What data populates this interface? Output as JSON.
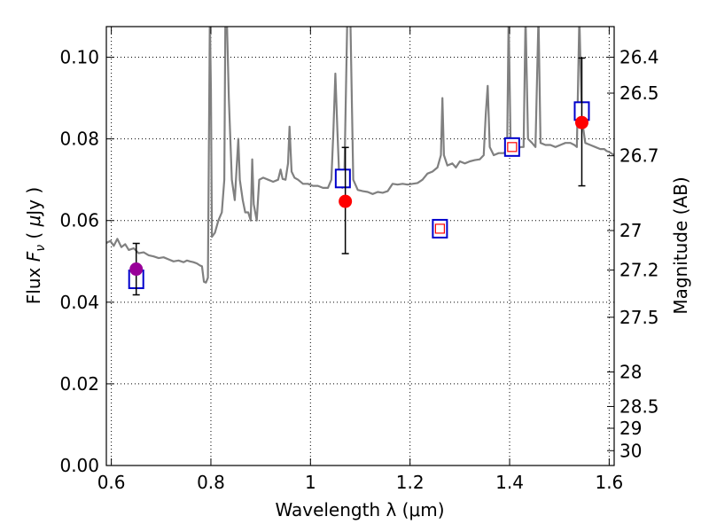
{
  "chart_data": {
    "type": "scatter",
    "xlabel": "Wavelength  λ (μm)",
    "ylabel_parts": [
      "Flux  ",
      "F",
      "ν",
      "  ( ",
      "μ",
      "Jy )"
    ],
    "y2label": "Magnitude (AB)",
    "xlim": [
      0.59,
      1.61
    ],
    "ylim": [
      0.0,
      0.1075
    ],
    "grid": true,
    "x_ticks": [
      0.6,
      0.8,
      1.0,
      1.2,
      1.4,
      1.6
    ],
    "x_tick_labels": [
      "0.6",
      "0.8",
      "1",
      "1.2",
      "1.4",
      "1.6"
    ],
    "y_ticks": [
      0.0,
      0.02,
      0.04,
      0.06,
      0.08,
      0.1
    ],
    "y_tick_labels": [
      "0.00",
      "0.02",
      "0.04",
      "0.06",
      "0.08",
      "0.10"
    ],
    "mag_ticks": [
      26.4,
      26.5,
      26.7,
      27,
      27.2,
      27.5,
      28,
      28.5,
      29,
      30
    ],
    "mag_tick_labels": [
      "26.4",
      "26.5",
      "26.7",
      "27",
      "27.2",
      "27.5",
      "28",
      "28.5",
      "29",
      "30"
    ],
    "colors": {
      "model": "#808080",
      "observed": "#ff0000",
      "observed_purple": "#990099",
      "synthetic_blue": "#0000cc",
      "synthetic_inner_red": "#ff0000",
      "errorbar": "#000000"
    },
    "series": [
      {
        "kind": "line",
        "points": [
          [
            0.59,
            0.0545
          ],
          [
            0.598,
            0.055
          ],
          [
            0.605,
            0.0538
          ],
          [
            0.612,
            0.0555
          ],
          [
            0.62,
            0.0535
          ],
          [
            0.628,
            0.0542
          ],
          [
            0.635,
            0.0528
          ],
          [
            0.645,
            0.0532
          ],
          [
            0.655,
            0.052
          ],
          [
            0.665,
            0.0522
          ],
          [
            0.675,
            0.0515
          ],
          [
            0.685,
            0.0512
          ],
          [
            0.695,
            0.0508
          ],
          [
            0.705,
            0.051
          ],
          [
            0.715,
            0.0505
          ],
          [
            0.725,
            0.05
          ],
          [
            0.735,
            0.0502
          ],
          [
            0.745,
            0.0498
          ],
          [
            0.752,
            0.0502
          ],
          [
            0.758,
            0.05
          ],
          [
            0.765,
            0.0498
          ],
          [
            0.772,
            0.0495
          ],
          [
            0.778,
            0.049
          ],
          [
            0.782,
            0.0488
          ],
          [
            0.786,
            0.045
          ],
          [
            0.79,
            0.0448
          ],
          [
            0.794,
            0.046
          ],
          [
            0.798,
            0.11
          ],
          [
            0.8,
            0.092
          ],
          [
            0.802,
            0.056
          ],
          [
            0.808,
            0.057
          ],
          [
            0.815,
            0.06
          ],
          [
            0.822,
            0.062
          ],
          [
            0.827,
            0.07
          ],
          [
            0.829,
            0.11
          ],
          [
            0.832,
            0.11
          ],
          [
            0.836,
            0.09
          ],
          [
            0.842,
            0.07
          ],
          [
            0.848,
            0.065
          ],
          [
            0.855,
            0.08
          ],
          [
            0.858,
            0.07
          ],
          [
            0.864,
            0.065
          ],
          [
            0.869,
            0.062
          ],
          [
            0.875,
            0.062
          ],
          [
            0.88,
            0.06
          ],
          [
            0.883,
            0.075
          ],
          [
            0.886,
            0.064
          ],
          [
            0.892,
            0.06
          ],
          [
            0.897,
            0.07
          ],
          [
            0.905,
            0.0705
          ],
          [
            0.915,
            0.07
          ],
          [
            0.925,
            0.0695
          ],
          [
            0.935,
            0.07
          ],
          [
            0.94,
            0.0725
          ],
          [
            0.944,
            0.0702
          ],
          [
            0.95,
            0.07
          ],
          [
            0.955,
            0.074
          ],
          [
            0.958,
            0.083
          ],
          [
            0.962,
            0.072
          ],
          [
            0.968,
            0.0705
          ],
          [
            0.975,
            0.07
          ],
          [
            0.985,
            0.069
          ],
          [
            0.995,
            0.069
          ],
          [
            1.005,
            0.0685
          ],
          [
            1.015,
            0.0685
          ],
          [
            1.025,
            0.068
          ],
          [
            1.035,
            0.068
          ],
          [
            1.042,
            0.07
          ],
          [
            1.046,
            0.082
          ],
          [
            1.05,
            0.096
          ],
          [
            1.054,
            0.082
          ],
          [
            1.058,
            0.07
          ],
          [
            1.064,
            0.068
          ],
          [
            1.068,
            0.07
          ],
          [
            1.074,
            0.11
          ],
          [
            1.08,
            0.11
          ],
          [
            1.086,
            0.07
          ],
          [
            1.095,
            0.0675
          ],
          [
            1.105,
            0.0672
          ],
          [
            1.115,
            0.067
          ],
          [
            1.125,
            0.0665
          ],
          [
            1.135,
            0.067
          ],
          [
            1.145,
            0.0668
          ],
          [
            1.155,
            0.0672
          ],
          [
            1.165,
            0.069
          ],
          [
            1.175,
            0.0688
          ],
          [
            1.185,
            0.069
          ],
          [
            1.195,
            0.0688
          ],
          [
            1.205,
            0.069
          ],
          [
            1.215,
            0.0692
          ],
          [
            1.225,
            0.07
          ],
          [
            1.235,
            0.0715
          ],
          [
            1.245,
            0.072
          ],
          [
            1.255,
            0.073
          ],
          [
            1.262,
            0.076
          ],
          [
            1.265,
            0.09
          ],
          [
            1.268,
            0.076
          ],
          [
            1.275,
            0.0735
          ],
          [
            1.285,
            0.074
          ],
          [
            1.292,
            0.073
          ],
          [
            1.3,
            0.0745
          ],
          [
            1.31,
            0.074
          ],
          [
            1.32,
            0.0745
          ],
          [
            1.33,
            0.0748
          ],
          [
            1.34,
            0.075
          ],
          [
            1.348,
            0.076
          ],
          [
            1.352,
            0.086
          ],
          [
            1.356,
            0.093
          ],
          [
            1.36,
            0.078
          ],
          [
            1.368,
            0.076
          ],
          [
            1.378,
            0.0765
          ],
          [
            1.388,
            0.0765
          ],
          [
            1.395,
            0.077
          ],
          [
            1.398,
            0.11
          ],
          [
            1.402,
            0.078
          ],
          [
            1.408,
            0.077
          ],
          [
            1.416,
            0.0775
          ],
          [
            1.422,
            0.078
          ],
          [
            1.428,
            0.078
          ],
          [
            1.432,
            0.11
          ],
          [
            1.437,
            0.08
          ],
          [
            1.445,
            0.079
          ],
          [
            1.452,
            0.078
          ],
          [
            1.458,
            0.11
          ],
          [
            1.462,
            0.079
          ],
          [
            1.472,
            0.0785
          ],
          [
            1.482,
            0.0785
          ],
          [
            1.492,
            0.078
          ],
          [
            1.502,
            0.0785
          ],
          [
            1.512,
            0.079
          ],
          [
            1.522,
            0.079
          ],
          [
            1.53,
            0.0785
          ],
          [
            1.535,
            0.078
          ],
          [
            1.54,
            0.11
          ],
          [
            1.545,
            0.085
          ],
          [
            1.552,
            0.079
          ],
          [
            1.562,
            0.0785
          ],
          [
            1.572,
            0.078
          ],
          [
            1.582,
            0.0775
          ],
          [
            1.59,
            0.0775
          ],
          [
            1.595,
            0.077
          ],
          [
            1.6,
            0.0768
          ],
          [
            1.61,
            0.076
          ]
        ]
      },
      {
        "kind": "observed",
        "points": [
          {
            "x": 1.07,
            "y": 0.0647,
            "yerr_low": 0.0128,
            "yerr_high": 0.0132,
            "color": "observed"
          },
          {
            "x": 1.545,
            "y": 0.084,
            "yerr_low": 0.0155,
            "yerr_high": 0.0158,
            "color": "observed"
          },
          {
            "x": 0.65,
            "y": 0.0481,
            "yerr_low": 0.0063,
            "yerr_high": 0.0063,
            "color": "observed_purple"
          }
        ]
      },
      {
        "kind": "synthetic",
        "points": [
          {
            "x": 0.65,
            "y": 0.0456,
            "inner": false
          },
          {
            "x": 1.065,
            "y": 0.0703,
            "inner": false
          },
          {
            "x": 1.26,
            "y": 0.058,
            "inner": true
          },
          {
            "x": 1.405,
            "y": 0.078,
            "inner": true
          },
          {
            "x": 1.545,
            "y": 0.0868,
            "inner": false
          }
        ]
      }
    ]
  }
}
